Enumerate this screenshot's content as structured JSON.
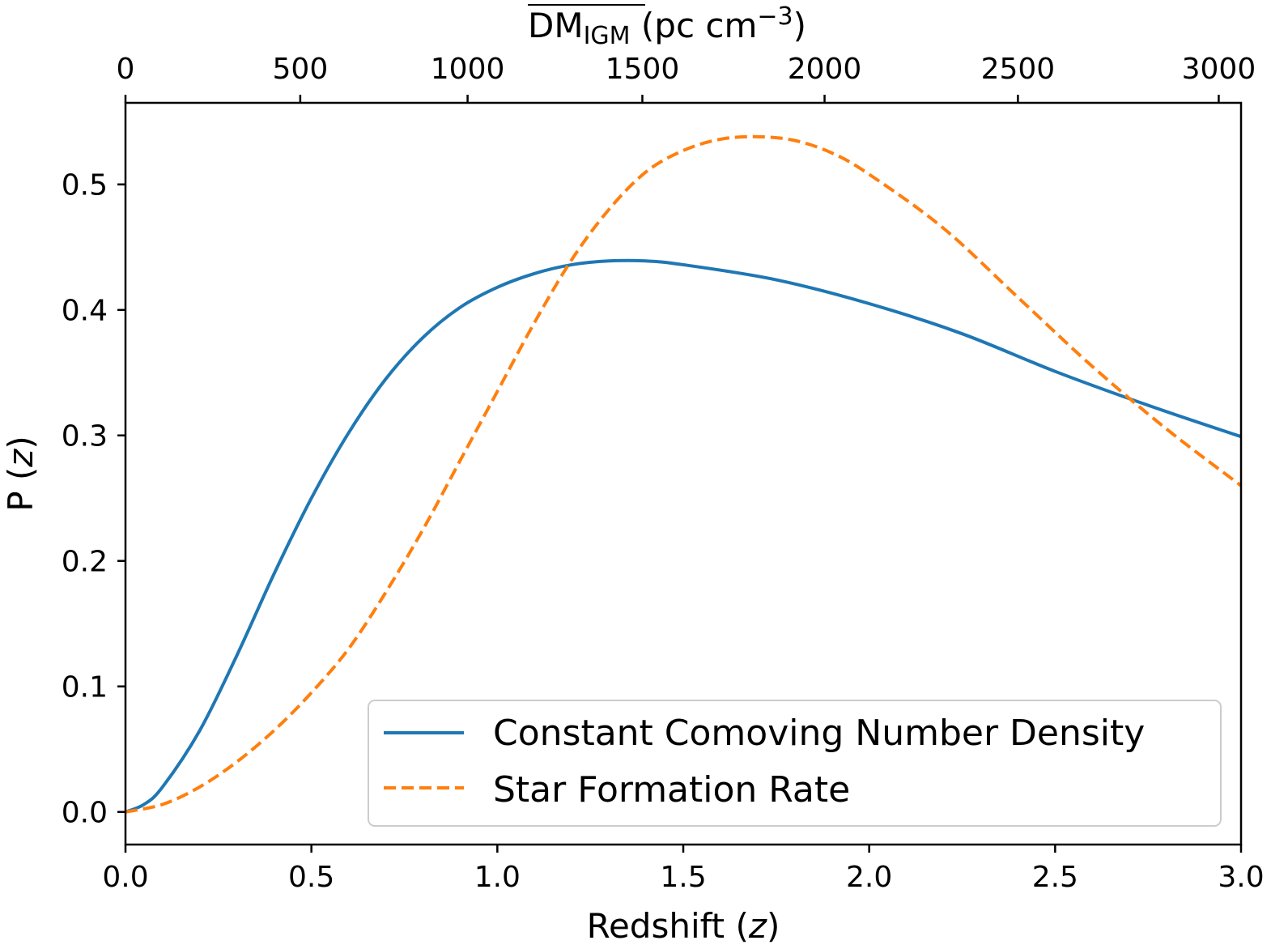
{
  "chart_data": {
    "type": "line",
    "xlabel": "Redshift (z)",
    "xlabel_main": "Redshift (",
    "xlabel_var": "z",
    "xlabel_close": ")",
    "ylabel": "P (z)",
    "ylabel_main": "P (",
    "ylabel_var": "z",
    "ylabel_close": ")",
    "top_xlabel": "DM_IGM (pc cm^-3)",
    "top_xlabel_main": "DM",
    "top_xlabel_sub": "IGM",
    "top_xlabel_unit": " (pc cm",
    "top_xlabel_sup": "−3",
    "top_xlabel_close": ")",
    "xlim": [
      0,
      3.0
    ],
    "ylim": [
      -0.026,
      0.565
    ],
    "xticks": [
      0.0,
      0.5,
      1.0,
      1.5,
      2.0,
      2.5,
      3.0
    ],
    "xtick_labels": [
      "0.0",
      "0.5",
      "1.0",
      "1.5",
      "2.0",
      "2.5",
      "3.0"
    ],
    "yticks": [
      0.0,
      0.1,
      0.2,
      0.3,
      0.4,
      0.5
    ],
    "ytick_labels": [
      "0.0",
      "0.1",
      "0.2",
      "0.3",
      "0.4",
      "0.5"
    ],
    "top_ticks_z": [
      0.0,
      0.47,
      0.92,
      1.39,
      1.88,
      2.4,
      2.94
    ],
    "top_tick_labels": [
      "0",
      "500",
      "1000",
      "1500",
      "2000",
      "2500",
      "3000"
    ],
    "grid": false,
    "legend_placement": "lower-right",
    "series": [
      {
        "name": "Constant Comoving Number Density",
        "color": "#1f77b4",
        "style": "solid",
        "x": [
          0,
          0.05,
          0.1,
          0.2,
          0.3,
          0.4,
          0.5,
          0.6,
          0.7,
          0.8,
          0.9,
          1.0,
          1.1,
          1.2,
          1.3,
          1.4,
          1.5,
          1.75,
          2.0,
          2.25,
          2.5,
          2.75,
          3.0
        ],
        "y": [
          0,
          0.006,
          0.02,
          0.065,
          0.125,
          0.19,
          0.25,
          0.302,
          0.345,
          0.378,
          0.402,
          0.418,
          0.429,
          0.436,
          0.439,
          0.439,
          0.436,
          0.424,
          0.405,
          0.381,
          0.351,
          0.324,
          0.299
        ]
      },
      {
        "name": "Star Formation Rate",
        "color": "#ff7f0e",
        "style": "dashed",
        "x": [
          0,
          0.1,
          0.2,
          0.3,
          0.4,
          0.5,
          0.6,
          0.7,
          0.8,
          0.9,
          1.0,
          1.1,
          1.2,
          1.3,
          1.4,
          1.5,
          1.6,
          1.7,
          1.8,
          1.9,
          2.0,
          2.2,
          2.4,
          2.6,
          2.8,
          3.0
        ],
        "y": [
          0,
          0.006,
          0.02,
          0.04,
          0.065,
          0.095,
          0.13,
          0.175,
          0.225,
          0.28,
          0.335,
          0.39,
          0.44,
          0.48,
          0.51,
          0.527,
          0.536,
          0.538,
          0.535,
          0.525,
          0.508,
          0.465,
          0.41,
          0.355,
          0.305,
          0.26
        ]
      }
    ]
  }
}
